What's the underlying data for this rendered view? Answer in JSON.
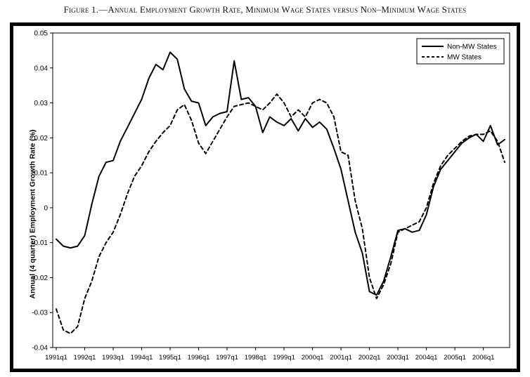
{
  "figure": {
    "caption": "Figure 1.—Annual Employment Growth Rate, Minimum Wage States versus Non–Minimum Wage States"
  },
  "chart_data": {
    "type": "line",
    "title": "",
    "xlabel": "",
    "ylabel": "Annual (4 quarter) Employment Growth Rate (%)",
    "ylim": [
      -0.04,
      0.05
    ],
    "yticks": [
      0.05,
      0.04,
      0.03,
      0.02,
      0.01,
      0,
      -0.01,
      -0.02,
      -0.03,
      -0.04
    ],
    "ytick_labels": [
      "0.05",
      "0.04",
      "0.03",
      "0.02",
      "0.01",
      "0",
      "-0.01",
      "-0.02",
      "-0.03",
      "-0.04"
    ],
    "x_frequency": "quarterly",
    "xtick_labels": [
      "1991q1",
      "1992q1",
      "1993q1",
      "1994q1",
      "1995q1",
      "1996q1",
      "1997q1",
      "1998q1",
      "1999q1",
      "2000q1",
      "2001q1",
      "2002q1",
      "2003q1",
      "2004q1",
      "2005q1",
      "2006q1"
    ],
    "xticks_every_n_points": 4,
    "grid": false,
    "line_color": "#000000",
    "legend": {
      "position": "top-right",
      "entries": [
        {
          "name": "Non-MW States",
          "style": "solid"
        },
        {
          "name": "MW States",
          "style": "dashed"
        }
      ]
    },
    "series": [
      {
        "name": "Non-MW States",
        "style": "solid",
        "values": [
          -0.009,
          -0.011,
          -0.0115,
          -0.011,
          -0.008,
          0.001,
          0.009,
          0.013,
          0.0135,
          0.019,
          0.023,
          0.027,
          0.031,
          0.037,
          0.041,
          0.0395,
          0.0445,
          0.0425,
          0.034,
          0.0305,
          0.03,
          0.0235,
          0.026,
          0.027,
          0.0275,
          0.042,
          0.031,
          0.0315,
          0.029,
          0.0215,
          0.026,
          0.0245,
          0.0235,
          0.0255,
          0.022,
          0.0255,
          0.023,
          0.0245,
          0.0225,
          0.017,
          0.011,
          0.002,
          -0.007,
          -0.013,
          -0.024,
          -0.025,
          -0.021,
          -0.014,
          -0.0065,
          -0.006,
          -0.007,
          -0.0065,
          -0.002,
          0.006,
          0.011,
          0.0135,
          0.016,
          0.0185,
          0.02,
          0.021,
          0.019,
          0.0235,
          0.018,
          0.0195
        ]
      },
      {
        "name": "MW States",
        "style": "dashed",
        "values": [
          -0.029,
          -0.035,
          -0.036,
          -0.034,
          -0.026,
          -0.021,
          -0.014,
          -0.01,
          -0.007,
          -0.002,
          0.004,
          0.009,
          0.012,
          0.016,
          0.019,
          0.0215,
          0.0235,
          0.028,
          0.0295,
          0.025,
          0.0185,
          0.0155,
          0.019,
          0.0225,
          0.026,
          0.029,
          0.0295,
          0.03,
          0.029,
          0.028,
          0.03,
          0.0325,
          0.03,
          0.026,
          0.028,
          0.026,
          0.03,
          0.031,
          0.03,
          0.026,
          0.016,
          0.015,
          0.002,
          -0.006,
          -0.02,
          -0.026,
          -0.022,
          -0.016,
          -0.007,
          -0.006,
          -0.005,
          -0.004,
          0.0,
          0.007,
          0.012,
          0.015,
          0.017,
          0.019,
          0.0205,
          0.021,
          0.021,
          0.022,
          0.019,
          0.013
        ]
      }
    ]
  }
}
